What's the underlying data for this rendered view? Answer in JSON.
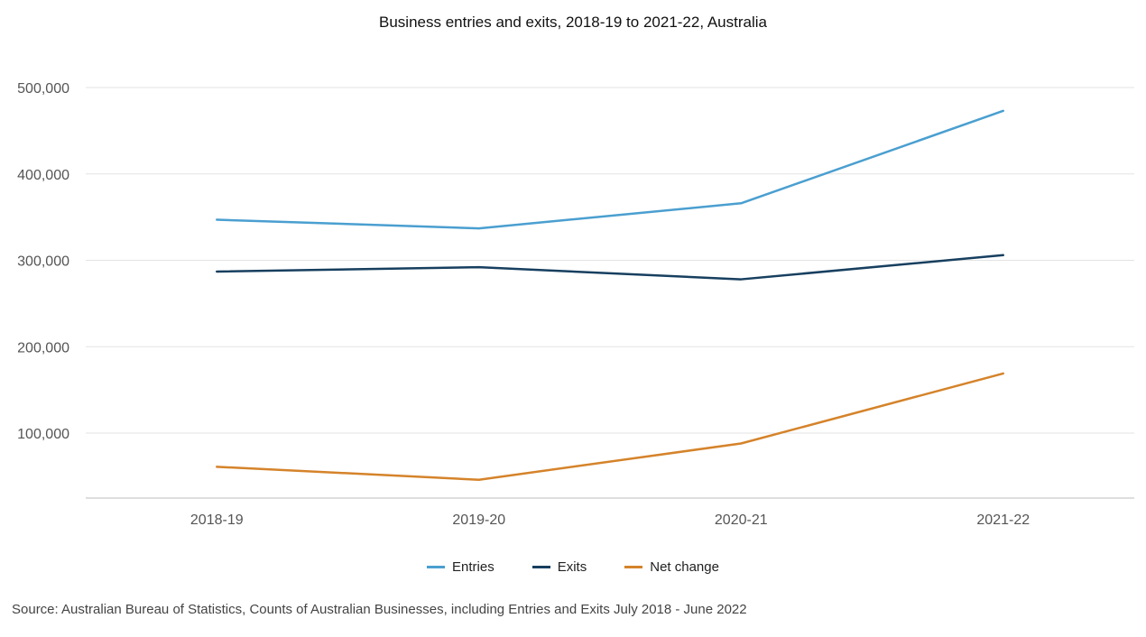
{
  "chart_data": {
    "type": "line",
    "title": "Business entries and exits, 2018-19 to 2021-22, Australia",
    "categories": [
      "2018-19",
      "2019-20",
      "2020-21",
      "2021-22"
    ],
    "series": [
      {
        "name": "Entries",
        "color": "#4a9fd0",
        "values": [
          347000,
          337000,
          366000,
          473000
        ]
      },
      {
        "name": "Exits",
        "color": "#173f5f",
        "values": [
          287000,
          292000,
          278000,
          306000
        ]
      },
      {
        "name": "Net change",
        "color": "#d5832a",
        "values": [
          61000,
          46000,
          88000,
          169000
        ]
      }
    ],
    "yticks": [
      100000,
      200000,
      300000,
      400000,
      500000
    ],
    "ytick_labels": [
      "100,000",
      "200,000",
      "300,000",
      "400,000",
      "500,000"
    ],
    "ylim": [
      25000,
      500000
    ],
    "xlabel": "",
    "ylabel": "",
    "grid": true,
    "legend_position": "bottom-center",
    "source": "Source: Australian Bureau of Statistics, Counts of Australian Businesses, including Entries and Exits July 2018 - June 2022"
  }
}
